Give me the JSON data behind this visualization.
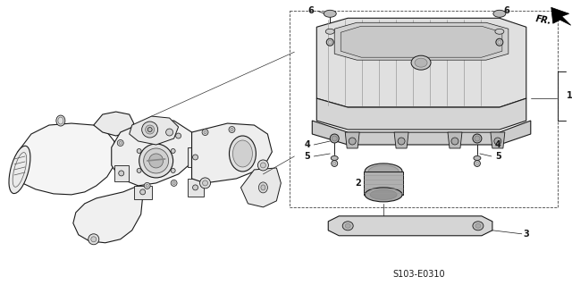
{
  "bg_color": "#ffffff",
  "line_color": "#1a1a1a",
  "caption": "S103-E0310",
  "fig_width": 6.4,
  "fig_height": 3.19,
  "dpi": 100
}
